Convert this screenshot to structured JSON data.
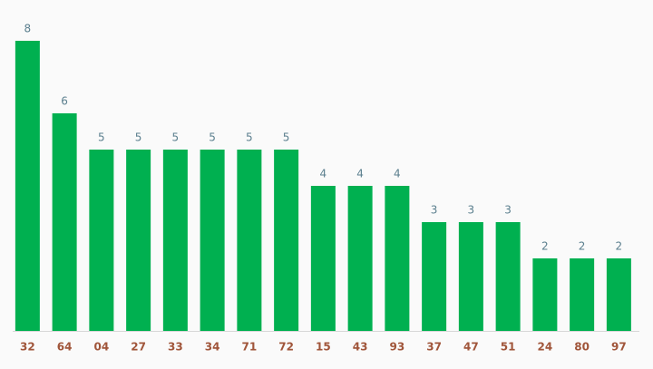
{
  "chart_data": {
    "type": "bar",
    "categories": [
      "32",
      "64",
      "04",
      "27",
      "33",
      "34",
      "71",
      "72",
      "15",
      "43",
      "93",
      "37",
      "47",
      "51",
      "24",
      "80",
      "97"
    ],
    "values": [
      8,
      6,
      5,
      5,
      5,
      5,
      5,
      5,
      4,
      4,
      4,
      3,
      3,
      3,
      2,
      2,
      2
    ],
    "color": "#00b050",
    "ylim": [
      0,
      8
    ]
  }
}
